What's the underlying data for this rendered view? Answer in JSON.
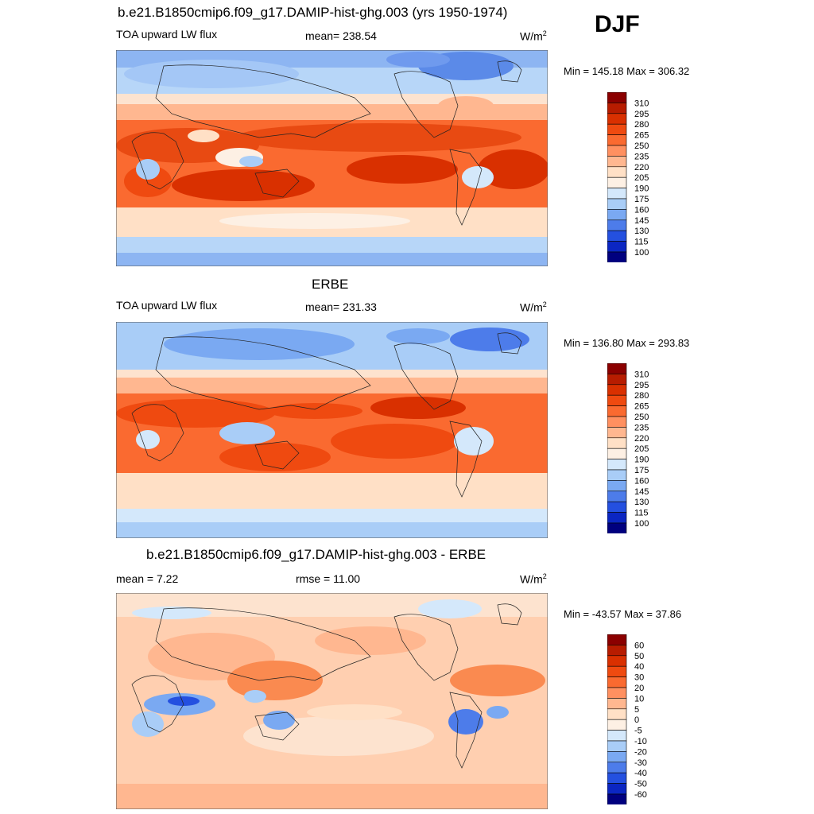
{
  "season": "DJF",
  "units_base": "W/m",
  "units_exp": "2",
  "panels": [
    {
      "title": "b.e21.B1850cmip6.f09_g17.DAMIP-hist-ghg.003 (yrs 1950-1974)",
      "left_label": "TOA upward LW flux",
      "center_label": "mean= 238.54",
      "minmax": "Min = 145.18 Max = 306.32"
    },
    {
      "title": "ERBE",
      "left_label": "TOA upward LW flux",
      "center_label": "mean= 231.33",
      "minmax": "Min = 136.80 Max = 293.83"
    },
    {
      "title": "b.e21.B1850cmip6.f09_g17.DAMIP-hist-ghg.003 - ERBE",
      "left_label": "mean =   7.22",
      "center_label": "rmse =  11.00",
      "minmax": "Min = -43.57 Max =  37.86"
    }
  ],
  "chart_data": [
    {
      "type": "heatmap",
      "title": "b.e21.B1850cmip6.f09_g17.DAMIP-hist-ghg.003 (yrs 1950-1974)",
      "variable": "TOA upward LW flux",
      "units": "W/m2",
      "mean": 238.54,
      "min": 145.18,
      "max": 306.32,
      "colorbar": {
        "labels": [
          "310",
          "295",
          "280",
          "265",
          "250",
          "235",
          "220",
          "205",
          "190",
          "175",
          "160",
          "145",
          "130",
          "115",
          "100"
        ],
        "colors": [
          "#8b0000",
          "#b71c00",
          "#d93000",
          "#ef4a10",
          "#fa6a30",
          "#ff9060",
          "#ffb790",
          "#ffe0c6",
          "#fdf0e4",
          "#d4e8fb",
          "#a9cdf7",
          "#7aa9f2",
          "#4d7cea",
          "#2450e0",
          "#0b26c2",
          "#00007f"
        ]
      }
    },
    {
      "type": "heatmap",
      "title": "ERBE",
      "variable": "TOA upward LW flux",
      "units": "W/m2",
      "mean": 231.33,
      "min": 136.8,
      "max": 293.83,
      "colorbar": {
        "labels": [
          "310",
          "295",
          "280",
          "265",
          "250",
          "235",
          "220",
          "205",
          "190",
          "175",
          "160",
          "145",
          "130",
          "115",
          "100"
        ],
        "colors": [
          "#8b0000",
          "#b71c00",
          "#d93000",
          "#ef4a10",
          "#fa6a30",
          "#ff9060",
          "#ffb790",
          "#ffe0c6",
          "#fdf0e4",
          "#d4e8fb",
          "#a9cdf7",
          "#7aa9f2",
          "#4d7cea",
          "#2450e0",
          "#0b26c2",
          "#00007f"
        ]
      }
    },
    {
      "type": "heatmap",
      "title": "b.e21.B1850cmip6.f09_g17.DAMIP-hist-ghg.003 - ERBE",
      "units": "W/m2",
      "mean": 7.22,
      "rmse": 11.0,
      "min": -43.57,
      "max": 37.86,
      "colorbar": {
        "labels": [
          "60",
          "50",
          "40",
          "30",
          "20",
          "10",
          "5",
          "0",
          "-5",
          "-10",
          "-20",
          "-30",
          "-40",
          "-50",
          "-60"
        ],
        "colors": [
          "#8b0000",
          "#b71c00",
          "#d93000",
          "#ef4a10",
          "#fa6a30",
          "#ff9060",
          "#ffb790",
          "#ffe0c6",
          "#fdf0e4",
          "#d4e8fb",
          "#a9cdf7",
          "#7aa9f2",
          "#4d7cea",
          "#2450e0",
          "#0b26c2",
          "#00007f"
        ]
      }
    }
  ]
}
